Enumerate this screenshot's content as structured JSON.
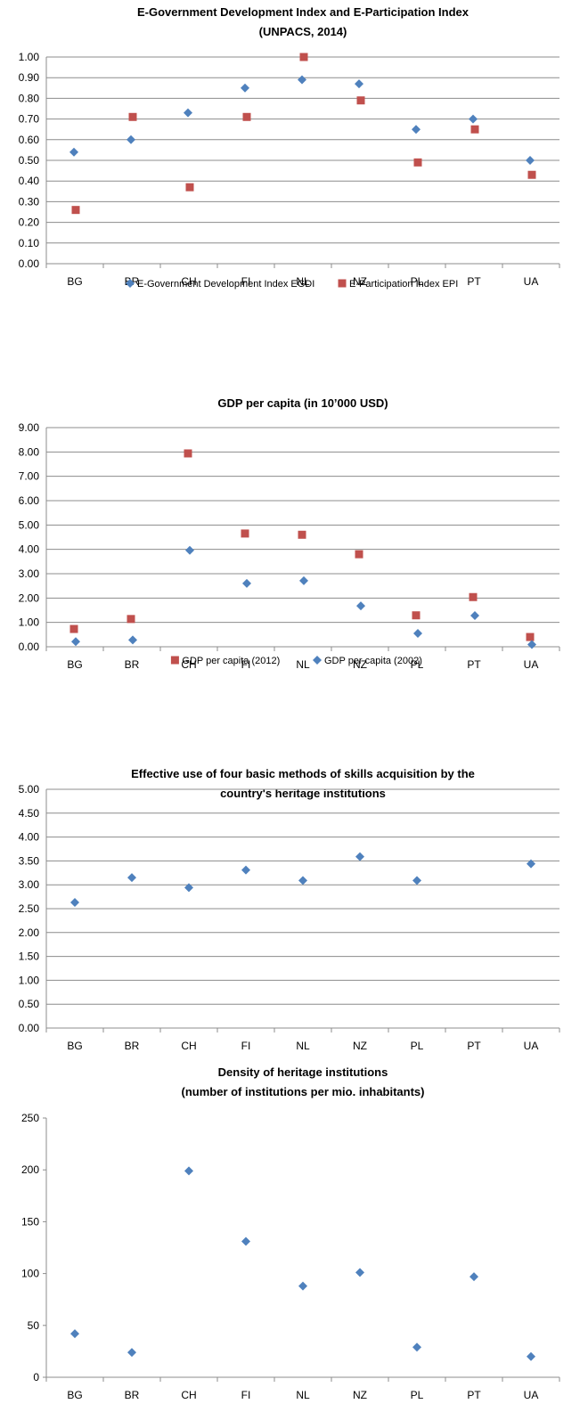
{
  "colors": {
    "blue": "#4f81bd",
    "red": "#c0504d",
    "grid": "#8c8c8c",
    "axis": "#8c8c8c"
  },
  "chart_data": [
    {
      "type": "scatter",
      "title": "E-Government Development Index and E-Participation Index",
      "subtitle": "(UNPACS, 2014)",
      "categories": [
        "BG",
        "BR",
        "CH",
        "FI",
        "NL",
        "NZ",
        "PL",
        "PT",
        "UA"
      ],
      "ylim": [
        0,
        1
      ],
      "ytick_step": 0.1,
      "ytick_decimals": 2,
      "grid": true,
      "legend": "bottom",
      "series": [
        {
          "name": "E-Government Development Index EGDI",
          "marker": "diamond",
          "color": "#4f81bd",
          "values": [
            0.54,
            0.6,
            0.73,
            0.85,
            0.89,
            0.87,
            0.65,
            0.7,
            0.5
          ]
        },
        {
          "name": "E-Participation Index EPI",
          "marker": "square",
          "color": "#c0504d",
          "values": [
            0.26,
            0.71,
            0.37,
            0.71,
            1.0,
            0.79,
            0.49,
            0.65,
            0.43
          ]
        }
      ]
    },
    {
      "type": "scatter",
      "title": "GDP per capita (in 10’000 USD)",
      "subtitle": "",
      "categories": [
        "BG",
        "BR",
        "CH",
        "FI",
        "NL",
        "NZ",
        "PL",
        "PT",
        "UA"
      ],
      "ylim": [
        0,
        9
      ],
      "ytick_step": 1,
      "ytick_decimals": 2,
      "grid": true,
      "legend": "bottom",
      "series": [
        {
          "name": "GDP per capita (2012)",
          "marker": "square",
          "color": "#c0504d",
          "values": [
            0.73,
            1.14,
            7.94,
            4.65,
            4.6,
            3.8,
            1.29,
            2.04,
            0.4
          ]
        },
        {
          "name": "GDP per capita (2002)",
          "marker": "diamond",
          "color": "#4f81bd",
          "values": [
            0.21,
            0.28,
            3.96,
            2.6,
            2.71,
            1.68,
            0.55,
            1.28,
            0.09
          ]
        }
      ]
    },
    {
      "type": "scatter",
      "title": "Effective use of four basic methods of skills acquisition by the",
      "subtitle": "country's heritage institutions",
      "categories": [
        "BG",
        "BR",
        "CH",
        "FI",
        "NL",
        "NZ",
        "PL",
        "PT",
        "UA"
      ],
      "ylim": [
        0,
        5
      ],
      "ytick_step": 0.5,
      "ytick_decimals": 2,
      "grid": true,
      "legend": "none",
      "series": [
        {
          "name": "",
          "marker": "diamond",
          "color": "#4f81bd",
          "values": [
            2.63,
            3.15,
            2.94,
            3.31,
            3.09,
            3.59,
            3.09,
            null,
            3.44
          ]
        }
      ]
    },
    {
      "type": "scatter",
      "title": "Density of heritage institutions",
      "subtitle": "(number of institutions per mio. inhabitants)",
      "categories": [
        "BG",
        "BR",
        "CH",
        "FI",
        "NL",
        "NZ",
        "PL",
        "PT",
        "UA"
      ],
      "ylim": [
        0,
        250
      ],
      "ytick_step": 50,
      "ytick_decimals": 0,
      "grid": false,
      "legend": "none",
      "series": [
        {
          "name": "",
          "marker": "diamond",
          "color": "#4f81bd",
          "values": [
            42,
            24,
            199,
            131,
            88,
            101,
            29,
            97,
            20
          ]
        }
      ]
    }
  ]
}
